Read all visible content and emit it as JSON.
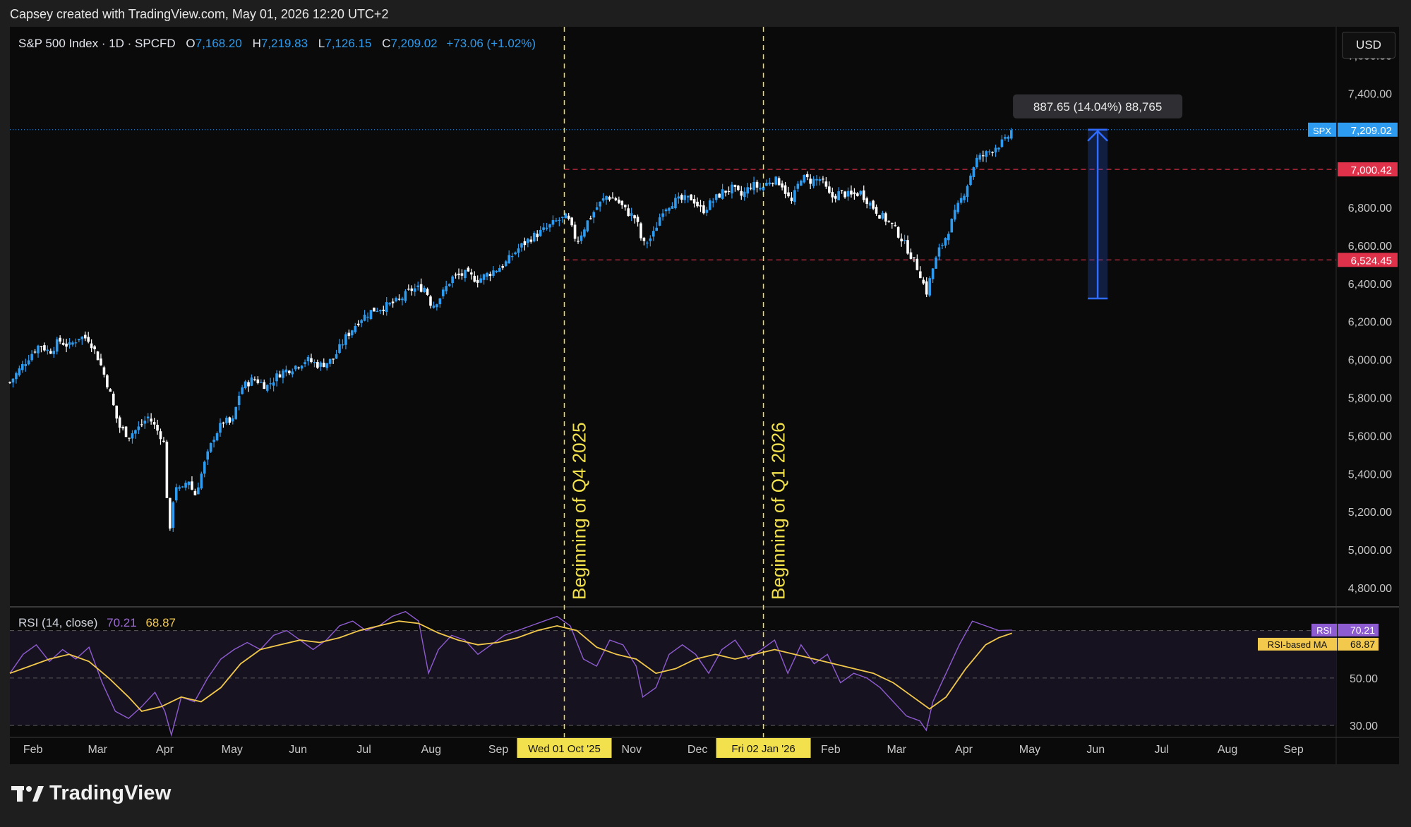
{
  "header": {
    "credit": "Capsey created with TradingView.com, May 01, 2026 12:20 UTC+2"
  },
  "legend": {
    "symbol": "S&P 500 Index · 1D · SPCFD",
    "open_label": "O",
    "open": "7,168.20",
    "high_label": "H",
    "high": "7,219.83",
    "low_label": "L",
    "low": "7,126.15",
    "close_label": "C",
    "close": "7,209.02",
    "change": "+73.06 (+1.02%)"
  },
  "currency": "USD",
  "rsi_legend": {
    "label": "RSI (14, close)",
    "rsi": "70.21",
    "ma": "68.87"
  },
  "logo": {
    "text": "TradingView"
  },
  "colors": {
    "up": "#2d9bf0",
    "down": "#ffffff",
    "rsi": "#8e5cd1",
    "rsi_ma": "#f2c94c",
    "level": "#e0314b",
    "marker": "#f2e14c",
    "measure": "#2f6bff",
    "background": "#0a0a0a"
  },
  "chart_data": [
    {
      "type": "candlestick",
      "title": "S&P 500 Index · 1D · SPCFD",
      "ylim": [
        4700,
        7750
      ],
      "y_ticks": [
        "7,600.00",
        "7,400.00",
        "7,200.00",
        "7,000.00",
        "6,800.00",
        "6,600.00",
        "6,400.00",
        "6,200.00",
        "6,000.00",
        "5,800.00",
        "5,600.00",
        "5,400.00",
        "5,200.00",
        "5,000.00",
        "4,800.00"
      ],
      "x_ticks": [
        "Feb",
        "Mar",
        "Apr",
        "May",
        "Jun",
        "Jul",
        "Aug",
        "Sep",
        "Oct",
        "Nov",
        "Dec",
        "Jan",
        "Feb",
        "Mar",
        "Apr",
        "May",
        "Jun",
        "Jul",
        "Aug",
        "Sep"
      ],
      "x_month_index": [
        0.35,
        1.33,
        2.35,
        3.37,
        4.37,
        5.37,
        6.39,
        7.41,
        8.41,
        9.43,
        10.43,
        11.43,
        12.45,
        13.45,
        14.47,
        15.47,
        16.47,
        17.47,
        18.47,
        19.47
      ],
      "close_path": [
        {
          "m": 0.0,
          "v": 5880
        },
        {
          "m": 0.15,
          "v": 5950
        },
        {
          "m": 0.3,
          "v": 6020
        },
        {
          "m": 0.45,
          "v": 6080
        },
        {
          "m": 0.6,
          "v": 6040
        },
        {
          "m": 0.75,
          "v": 6100
        },
        {
          "m": 0.9,
          "v": 6070
        },
        {
          "m": 1.05,
          "v": 6120
        },
        {
          "m": 1.2,
          "v": 6110
        },
        {
          "m": 1.35,
          "v": 6000
        },
        {
          "m": 1.5,
          "v": 5850
        },
        {
          "m": 1.65,
          "v": 5650
        },
        {
          "m": 1.8,
          "v": 5600
        },
        {
          "m": 1.95,
          "v": 5640
        },
        {
          "m": 2.1,
          "v": 5700
        },
        {
          "m": 2.25,
          "v": 5620
        },
        {
          "m": 2.33,
          "v": 5580
        },
        {
          "m": 2.42,
          "v": 5060
        },
        {
          "m": 2.5,
          "v": 5350
        },
        {
          "m": 2.6,
          "v": 5300
        },
        {
          "m": 2.7,
          "v": 5380
        },
        {
          "m": 2.8,
          "v": 5280
        },
        {
          "m": 2.95,
          "v": 5450
        },
        {
          "m": 3.1,
          "v": 5600
        },
        {
          "m": 3.25,
          "v": 5680
        },
        {
          "m": 3.37,
          "v": 5660
        },
        {
          "m": 3.5,
          "v": 5850
        },
        {
          "m": 3.7,
          "v": 5900
        },
        {
          "m": 3.9,
          "v": 5860
        },
        {
          "m": 4.1,
          "v": 5930
        },
        {
          "m": 4.3,
          "v": 5960
        },
        {
          "m": 4.5,
          "v": 6000
        },
        {
          "m": 4.7,
          "v": 5970
        },
        {
          "m": 4.9,
          "v": 6000
        },
        {
          "m": 5.1,
          "v": 6120
        },
        {
          "m": 5.3,
          "v": 6210
        },
        {
          "m": 5.5,
          "v": 6260
        },
        {
          "m": 5.7,
          "v": 6280
        },
        {
          "m": 5.9,
          "v": 6310
        },
        {
          "m": 6.1,
          "v": 6370
        },
        {
          "m": 6.3,
          "v": 6380
        },
        {
          "m": 6.4,
          "v": 6280
        },
        {
          "m": 6.55,
          "v": 6340
        },
        {
          "m": 6.7,
          "v": 6430
        },
        {
          "m": 6.9,
          "v": 6450
        },
        {
          "m": 7.1,
          "v": 6420
        },
        {
          "m": 7.3,
          "v": 6460
        },
        {
          "m": 7.5,
          "v": 6500
        },
        {
          "m": 7.7,
          "v": 6580
        },
        {
          "m": 7.9,
          "v": 6640
        },
        {
          "m": 8.1,
          "v": 6680
        },
        {
          "m": 8.3,
          "v": 6730
        },
        {
          "m": 8.45,
          "v": 6750
        },
        {
          "m": 8.6,
          "v": 6620
        },
        {
          "m": 8.75,
          "v": 6720
        },
        {
          "m": 8.9,
          "v": 6800
        },
        {
          "m": 9.05,
          "v": 6860
        },
        {
          "m": 9.2,
          "v": 6840
        },
        {
          "m": 9.35,
          "v": 6780
        },
        {
          "m": 9.5,
          "v": 6740
        },
        {
          "m": 9.6,
          "v": 6600
        },
        {
          "m": 9.75,
          "v": 6650
        },
        {
          "m": 9.9,
          "v": 6790
        },
        {
          "m": 10.05,
          "v": 6830
        },
        {
          "m": 10.2,
          "v": 6840
        },
        {
          "m": 10.35,
          "v": 6850
        },
        {
          "m": 10.5,
          "v": 6780
        },
        {
          "m": 10.65,
          "v": 6830
        },
        {
          "m": 10.8,
          "v": 6880
        },
        {
          "m": 10.95,
          "v": 6900
        },
        {
          "m": 11.1,
          "v": 6860
        },
        {
          "m": 11.25,
          "v": 6920
        },
        {
          "m": 11.4,
          "v": 6900
        },
        {
          "m": 11.55,
          "v": 6950
        },
        {
          "m": 11.7,
          "v": 6930
        },
        {
          "m": 11.85,
          "v": 6820
        },
        {
          "m": 12.0,
          "v": 6960
        },
        {
          "m": 12.15,
          "v": 6940
        },
        {
          "m": 12.3,
          "v": 6950
        },
        {
          "m": 12.45,
          "v": 6850
        },
        {
          "m": 12.6,
          "v": 6880
        },
        {
          "m": 12.75,
          "v": 6860
        },
        {
          "m": 12.9,
          "v": 6880
        },
        {
          "m": 13.05,
          "v": 6820
        },
        {
          "m": 13.2,
          "v": 6760
        },
        {
          "m": 13.35,
          "v": 6720
        },
        {
          "m": 13.5,
          "v": 6650
        },
        {
          "m": 13.65,
          "v": 6560
        },
        {
          "m": 13.8,
          "v": 6460
        },
        {
          "m": 13.9,
          "v": 6350
        },
        {
          "m": 14.0,
          "v": 6480
        },
        {
          "m": 14.1,
          "v": 6580
        },
        {
          "m": 14.2,
          "v": 6650
        },
        {
          "m": 14.35,
          "v": 6780
        },
        {
          "m": 14.5,
          "v": 6900
        },
        {
          "m": 14.65,
          "v": 7050
        },
        {
          "m": 14.8,
          "v": 7080
        },
        {
          "m": 14.95,
          "v": 7120
        },
        {
          "m": 15.1,
          "v": 7150
        },
        {
          "m": 15.2,
          "v": 7209
        }
      ],
      "levels": [
        {
          "label": "7,000.42",
          "value": 7000.42,
          "from_month": 8.41
        },
        {
          "label": "6,524.45",
          "value": 6524.45,
          "from_month": 8.41
        }
      ],
      "last_price": {
        "tag": "SPX",
        "label": "7,209.02",
        "value": 7209.02
      },
      "vertical_markers": [
        {
          "month": 8.41,
          "note": "Beginning of Q4 2025",
          "date_label": "Wed 01 Oct '25"
        },
        {
          "month": 11.43,
          "note": "Beginning of Q1 2026",
          "date_label": "Fri 02 Jan '26"
        }
      ],
      "measure": {
        "from_month": 16.35,
        "to_month": 16.65,
        "low": 6321.37,
        "high": 7209.02,
        "label": "887.65 (14.04%) 88,765"
      }
    },
    {
      "type": "line",
      "title": "RSI (14, close)",
      "ylim": [
        25,
        80
      ],
      "y_ticks": [
        "50.00",
        "30.00"
      ],
      "bands": [
        70,
        50,
        30
      ],
      "series": [
        {
          "name": "RSI",
          "color": "#8e5cd1",
          "points": [
            [
              0.0,
              52
            ],
            [
              0.2,
              60
            ],
            [
              0.4,
              64
            ],
            [
              0.6,
              57
            ],
            [
              0.8,
              62
            ],
            [
              1.0,
              58
            ],
            [
              1.2,
              63
            ],
            [
              1.4,
              48
            ],
            [
              1.6,
              36
            ],
            [
              1.8,
              33
            ],
            [
              2.0,
              38
            ],
            [
              2.2,
              44
            ],
            [
              2.35,
              36
            ],
            [
              2.45,
              26
            ],
            [
              2.6,
              42
            ],
            [
              2.8,
              40
            ],
            [
              3.0,
              50
            ],
            [
              3.2,
              58
            ],
            [
              3.4,
              62
            ],
            [
              3.6,
              65
            ],
            [
              3.8,
              62
            ],
            [
              4.0,
              68
            ],
            [
              4.2,
              70
            ],
            [
              4.4,
              66
            ],
            [
              4.6,
              62
            ],
            [
              4.8,
              66
            ],
            [
              5.0,
              72
            ],
            [
              5.2,
              74
            ],
            [
              5.4,
              70
            ],
            [
              5.6,
              72
            ],
            [
              5.8,
              76
            ],
            [
              6.0,
              78
            ],
            [
              6.2,
              74
            ],
            [
              6.35,
              52
            ],
            [
              6.5,
              62
            ],
            [
              6.7,
              68
            ],
            [
              6.9,
              66
            ],
            [
              7.1,
              60
            ],
            [
              7.3,
              64
            ],
            [
              7.5,
              68
            ],
            [
              7.7,
              70
            ],
            [
              7.9,
              72
            ],
            [
              8.1,
              74
            ],
            [
              8.3,
              76
            ],
            [
              8.5,
              72
            ],
            [
              8.7,
              58
            ],
            [
              8.9,
              55
            ],
            [
              9.1,
              66
            ],
            [
              9.3,
              64
            ],
            [
              9.5,
              55
            ],
            [
              9.6,
              42
            ],
            [
              9.8,
              46
            ],
            [
              10.0,
              60
            ],
            [
              10.2,
              64
            ],
            [
              10.4,
              60
            ],
            [
              10.6,
              52
            ],
            [
              10.8,
              62
            ],
            [
              11.0,
              66
            ],
            [
              11.2,
              58
            ],
            [
              11.4,
              62
            ],
            [
              11.6,
              66
            ],
            [
              11.8,
              52
            ],
            [
              12.0,
              64
            ],
            [
              12.2,
              56
            ],
            [
              12.4,
              60
            ],
            [
              12.6,
              48
            ],
            [
              12.8,
              52
            ],
            [
              13.0,
              50
            ],
            [
              13.2,
              46
            ],
            [
              13.4,
              40
            ],
            [
              13.6,
              34
            ],
            [
              13.8,
              32
            ],
            [
              13.9,
              28
            ],
            [
              14.0,
              40
            ],
            [
              14.2,
              52
            ],
            [
              14.4,
              64
            ],
            [
              14.6,
              74
            ],
            [
              14.8,
              72
            ],
            [
              15.0,
              70
            ],
            [
              15.2,
              70.21
            ]
          ]
        },
        {
          "name": "RSI-based MA",
          "color": "#f2c94c",
          "points": [
            [
              0.0,
              52
            ],
            [
              0.3,
              55
            ],
            [
              0.6,
              58
            ],
            [
              0.9,
              60
            ],
            [
              1.2,
              57
            ],
            [
              1.5,
              50
            ],
            [
              1.8,
              42
            ],
            [
              2.0,
              36
            ],
            [
              2.3,
              38
            ],
            [
              2.6,
              42
            ],
            [
              2.9,
              40
            ],
            [
              3.2,
              46
            ],
            [
              3.5,
              56
            ],
            [
              3.8,
              62
            ],
            [
              4.1,
              64
            ],
            [
              4.4,
              66
            ],
            [
              4.7,
              65
            ],
            [
              5.0,
              67
            ],
            [
              5.3,
              70
            ],
            [
              5.6,
              72
            ],
            [
              5.9,
              74
            ],
            [
              6.2,
              73
            ],
            [
              6.5,
              69
            ],
            [
              6.8,
              66
            ],
            [
              7.1,
              64
            ],
            [
              7.4,
              65
            ],
            [
              7.7,
              67
            ],
            [
              8.0,
              70
            ],
            [
              8.3,
              72
            ],
            [
              8.6,
              70
            ],
            [
              8.9,
              63
            ],
            [
              9.2,
              60
            ],
            [
              9.5,
              58
            ],
            [
              9.8,
              52
            ],
            [
              10.1,
              54
            ],
            [
              10.4,
              58
            ],
            [
              10.7,
              60
            ],
            [
              11.0,
              58
            ],
            [
              11.3,
              60
            ],
            [
              11.6,
              62
            ],
            [
              11.9,
              60
            ],
            [
              12.2,
              58
            ],
            [
              12.5,
              56
            ],
            [
              12.8,
              54
            ],
            [
              13.1,
              52
            ],
            [
              13.4,
              48
            ],
            [
              13.7,
              42
            ],
            [
              13.95,
              37
            ],
            [
              14.2,
              42
            ],
            [
              14.5,
              54
            ],
            [
              14.8,
              64
            ],
            [
              15.0,
              67
            ],
            [
              15.2,
              68.87
            ]
          ]
        }
      ],
      "labels": [
        {
          "tag": "RSI",
          "value": "70.21"
        },
        {
          "tag": "RSI-based MA",
          "value": "68.87"
        }
      ]
    }
  ]
}
